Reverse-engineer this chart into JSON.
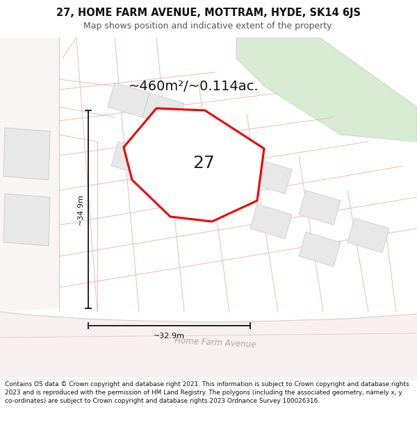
{
  "title": "27, HOME FARM AVENUE, MOTTRAM, HYDE, SK14 6JS",
  "subtitle": "Map shows position and indicative extent of the property.",
  "footer": "Contains OS data © Crown copyright and database right 2021. This information is subject to Crown copyright and database rights 2023 and is reproduced with the permission of HM Land Registry. The polygons (including the associated geometry, namely x, y co-ordinates) are subject to Crown copyright and database rights 2023 Ordnance Survey 100026316.",
  "area_label": "~460m²/~0.114ac.",
  "property_number": "27",
  "dim_vertical": "~34.9m",
  "dim_horizontal": "~32.9m",
  "street_label": "Home Farm Avenue",
  "map_bg": "#ffffff",
  "road_bg": "#f5f0f0",
  "road_line": "#e0c8c8",
  "plot_line": "#f0b8b8",
  "building_fill": "#e8e8e8",
  "building_ec": "#cccccc",
  "green_fill": "#d8ecd4",
  "green_ec": "#b8d4b4",
  "highlight_fill": "#ffffff",
  "highlight_outline": "#ee0000",
  "highlight_lw": 2.2,
  "dim_color": "#111111",
  "street_color": "#aaaaaa",
  "title_color": "#111111",
  "subtitle_color": "#555555",
  "footer_color": "#111111",
  "title_fontsize": 10.5,
  "subtitle_fontsize": 9.0,
  "footer_fontsize": 6.4,
  "area_fontsize": 14,
  "number_fontsize": 18,
  "dim_fontsize": 8,
  "street_fontsize": 8.5
}
